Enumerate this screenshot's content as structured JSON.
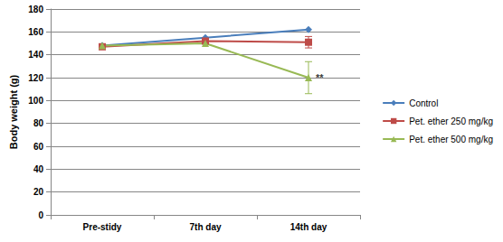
{
  "chart_data": {
    "type": "line",
    "ylabel": "Body weight (g)",
    "categories": [
      "Pre-stidy",
      "7th day",
      "14th day"
    ],
    "series": [
      {
        "name": "Control",
        "color": "#4a7ebb",
        "marker": "diamond",
        "values": [
          148,
          155,
          162
        ],
        "errors": [
          null,
          null,
          null
        ]
      },
      {
        "name": "Pet. ether 250 mg/kg",
        "color": "#be4b48",
        "marker": "square",
        "values": [
          147,
          152,
          151
        ],
        "errors": [
          null,
          null,
          5
        ]
      },
      {
        "name": "Pet. ether 500 mg/kg",
        "color": "#98b954",
        "marker": "triangle",
        "values": [
          148,
          150,
          120
        ],
        "errors": [
          null,
          null,
          14
        ]
      }
    ],
    "annotations": [
      {
        "text": "**",
        "x": "14th day",
        "y": 120
      }
    ],
    "ylim": [
      0,
      180
    ],
    "yticks": [
      0,
      20,
      40,
      60,
      80,
      100,
      120,
      140,
      160,
      180
    ],
    "grid": true,
    "legend": "right"
  }
}
